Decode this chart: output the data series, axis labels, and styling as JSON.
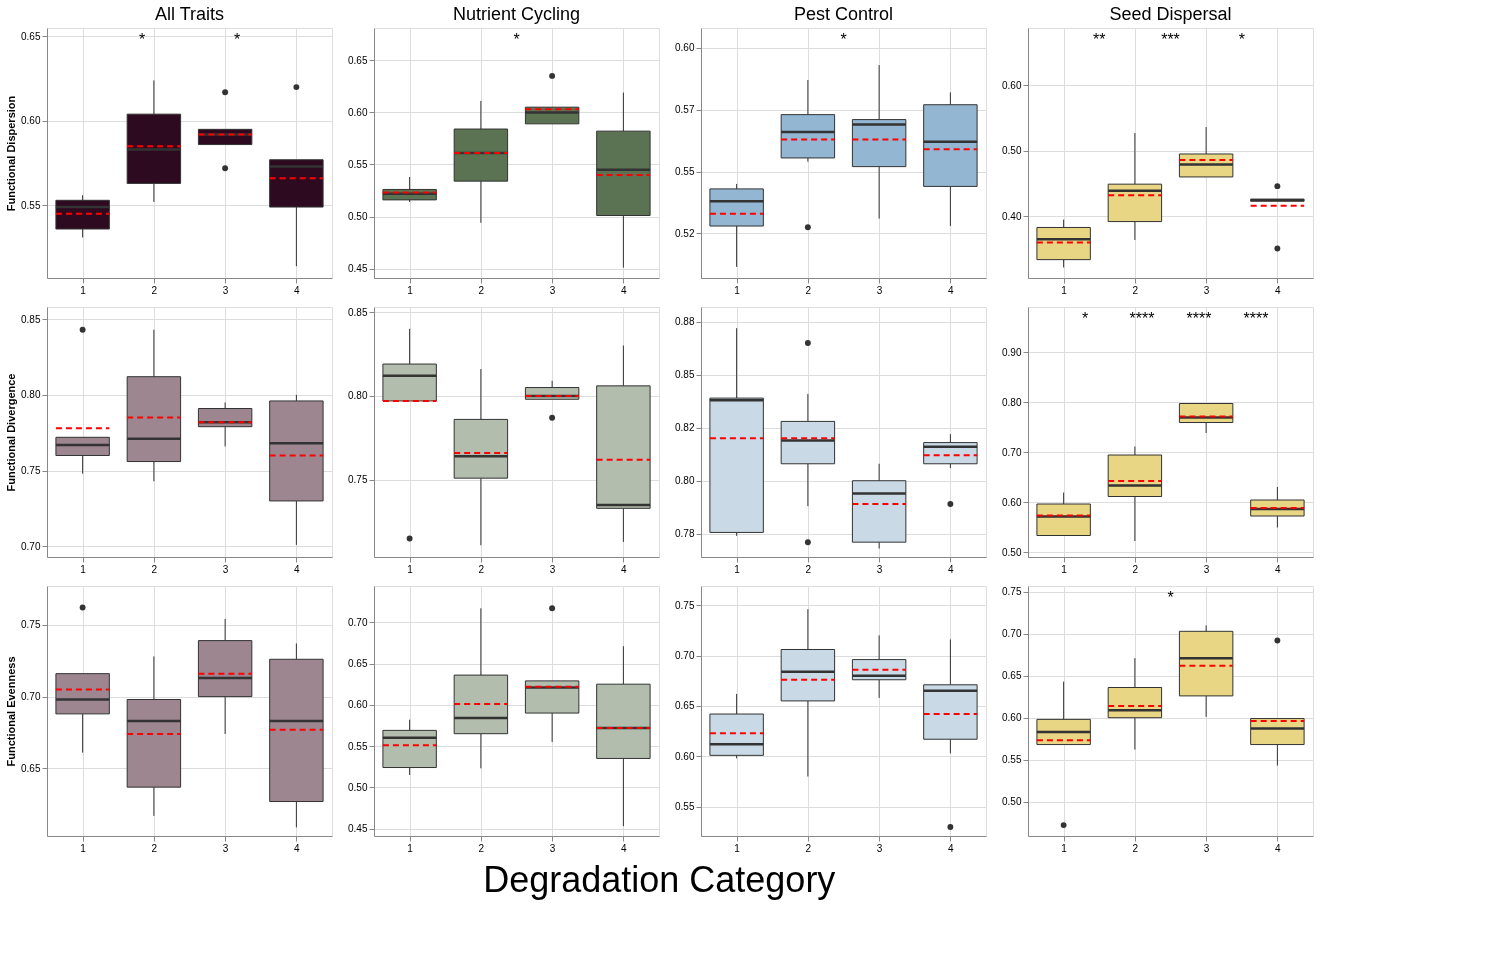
{
  "chart_data": [
    {
      "type": "box",
      "title": "All Traits",
      "ylabel": "Functional Dispersion",
      "categories": [
        "1",
        "2",
        "3",
        "4"
      ],
      "color": "#2d0a1f",
      "grid": true,
      "ylim": [
        0.507,
        0.655
      ],
      "yticks": [
        {
          "value": 0.55,
          "label": "0.55"
        },
        {
          "value": 0.6,
          "label": "0.60"
        },
        {
          "value": 0.65,
          "label": "0.65"
        }
      ],
      "annotations": [
        "*",
        "*"
      ],
      "boxes": [
        {
          "low": 0.531,
          "q1": 0.536,
          "median": 0.549,
          "q3": 0.553,
          "high": 0.556,
          "mean": 0.545
        },
        {
          "low": 0.552,
          "q1": 0.563,
          "median": 0.583,
          "q3": 0.604,
          "high": 0.624,
          "mean": 0.585
        },
        {
          "low": 0.586,
          "q1": 0.586,
          "median": 0.592,
          "q3": 0.595,
          "high": 0.595,
          "mean": 0.592,
          "outliers": [
            0.617,
            0.572
          ]
        },
        {
          "low": 0.514,
          "q1": 0.549,
          "median": 0.573,
          "q3": 0.577,
          "high": 0.577,
          "mean": 0.566,
          "outliers": [
            0.62
          ]
        }
      ]
    },
    {
      "type": "box",
      "title": "Nutrient Cycling",
      "categories": [
        "1",
        "2",
        "3",
        "4"
      ],
      "color": "#5b7352",
      "grid": true,
      "ylim": [
        0.441,
        0.681
      ],
      "yticks": [
        {
          "value": 0.45,
          "label": "0.45"
        },
        {
          "value": 0.5,
          "label": "0.50"
        },
        {
          "value": 0.55,
          "label": "0.55"
        },
        {
          "value": 0.6,
          "label": "0.60"
        },
        {
          "value": 0.65,
          "label": "0.65"
        }
      ],
      "annotations": [
        "*"
      ],
      "boxes": [
        {
          "low": 0.514,
          "q1": 0.516,
          "median": 0.522,
          "q3": 0.526,
          "high": 0.538,
          "mean": 0.523
        },
        {
          "low": 0.494,
          "q1": 0.534,
          "median": 0.561,
          "q3": 0.584,
          "high": 0.611,
          "mean": 0.561
        },
        {
          "low": 0.589,
          "q1": 0.589,
          "median": 0.6,
          "q3": 0.605,
          "high": 0.605,
          "mean": 0.603,
          "outliers": [
            0.635
          ]
        },
        {
          "low": 0.451,
          "q1": 0.501,
          "median": 0.545,
          "q3": 0.582,
          "high": 0.619,
          "mean": 0.54
        }
      ]
    },
    {
      "type": "box",
      "title": "Pest Control",
      "categories": [
        "1",
        "2",
        "3",
        "4"
      ],
      "color": "#93b6d3",
      "grid": true,
      "ylim": [
        0.507,
        0.608
      ],
      "yticks": [
        {
          "value": 0.525,
          "label": "0.52"
        },
        {
          "value": 0.55,
          "label": "0.55"
        },
        {
          "value": 0.575,
          "label": "0.57"
        },
        {
          "value": 0.6,
          "label": "0.60"
        }
      ],
      "annotations": [
        "*"
      ],
      "boxes": [
        {
          "low": 0.5115,
          "q1": 0.528,
          "median": 0.538,
          "q3": 0.543,
          "high": 0.545,
          "mean": 0.533
        },
        {
          "low": 0.554,
          "q1": 0.5555,
          "median": 0.566,
          "q3": 0.573,
          "high": 0.587,
          "mean": 0.563,
          "outliers": [
            0.5275
          ]
        },
        {
          "low": 0.531,
          "q1": 0.552,
          "median": 0.569,
          "q3": 0.571,
          "high": 0.593,
          "mean": 0.563
        },
        {
          "low": 0.528,
          "q1": 0.544,
          "median": 0.562,
          "q3": 0.577,
          "high": 0.582,
          "mean": 0.559
        }
      ]
    },
    {
      "type": "box",
      "title": "Seed Dispersal",
      "categories": [
        "1",
        "2",
        "3",
        "4"
      ],
      "color": "#e9d685",
      "grid": true,
      "ylim": [
        0.306,
        0.687
      ],
      "yticks": [
        {
          "value": 0.4,
          "label": "0.40"
        },
        {
          "value": 0.5,
          "label": "0.50"
        },
        {
          "value": 0.6,
          "label": "0.60"
        }
      ],
      "annotations": [
        "**",
        "***",
        "*"
      ],
      "boxes": [
        {
          "low": 0.322,
          "q1": 0.334,
          "median": 0.365,
          "q3": 0.383,
          "high": 0.395,
          "mean": 0.36
        },
        {
          "low": 0.364,
          "q1": 0.392,
          "median": 0.439,
          "q3": 0.449,
          "high": 0.527,
          "mean": 0.432
        },
        {
          "low": 0.46,
          "q1": 0.46,
          "median": 0.479,
          "q3": 0.495,
          "high": 0.536,
          "mean": 0.486
        },
        {
          "low": 0.423,
          "q1": 0.423,
          "median": 0.425,
          "q3": 0.426,
          "high": 0.426,
          "mean": 0.416,
          "outliers": [
            0.446,
            0.351
          ]
        }
      ]
    },
    {
      "type": "box",
      "ylabel": "Functional Divergence",
      "categories": [
        "1",
        "2",
        "3",
        "4"
      ],
      "color": "#9d8690",
      "grid": true,
      "ylim": [
        0.693,
        0.858
      ],
      "yticks": [
        {
          "value": 0.7,
          "label": "0.70"
        },
        {
          "value": 0.75,
          "label": "0.75"
        },
        {
          "value": 0.8,
          "label": "0.80"
        },
        {
          "value": 0.85,
          "label": "0.85"
        }
      ],
      "boxes": [
        {
          "low": 0.748,
          "q1": 0.76,
          "median": 0.767,
          "q3": 0.772,
          "high": 0.772,
          "mean": 0.778,
          "outliers": [
            0.843
          ]
        },
        {
          "low": 0.743,
          "q1": 0.756,
          "median": 0.771,
          "q3": 0.812,
          "high": 0.843,
          "mean": 0.785
        },
        {
          "low": 0.766,
          "q1": 0.779,
          "median": 0.782,
          "q3": 0.791,
          "high": 0.795,
          "mean": 0.782
        },
        {
          "low": 0.701,
          "q1": 0.73,
          "median": 0.768,
          "q3": 0.796,
          "high": 0.8,
          "mean": 0.76
        }
      ]
    },
    {
      "type": "box",
      "categories": [
        "1",
        "2",
        "3",
        "4"
      ],
      "color": "#b2bdad",
      "grid": true,
      "ylim": [
        0.704,
        0.853
      ],
      "yticks": [
        {
          "value": 0.75,
          "label": "0.75"
        },
        {
          "value": 0.8,
          "label": "0.80"
        },
        {
          "value": 0.85,
          "label": "0.85"
        }
      ],
      "boxes": [
        {
          "low": 0.797,
          "q1": 0.797,
          "median": 0.812,
          "q3": 0.819,
          "high": 0.84,
          "mean": 0.797,
          "outliers": [
            0.715
          ]
        },
        {
          "low": 0.711,
          "q1": 0.751,
          "median": 0.764,
          "q3": 0.786,
          "high": 0.816,
          "mean": 0.766
        },
        {
          "low": 0.798,
          "q1": 0.798,
          "median": 0.8,
          "q3": 0.805,
          "high": 0.809,
          "mean": 0.8,
          "outliers": [
            0.787
          ]
        },
        {
          "low": 0.713,
          "q1": 0.733,
          "median": 0.735,
          "q3": 0.806,
          "high": 0.83,
          "mean": 0.762
        }
      ]
    },
    {
      "type": "box",
      "categories": [
        "1",
        "2",
        "3",
        "4"
      ],
      "color": "#c9dae6",
      "grid": true,
      "ylim": [
        0.764,
        0.882
      ],
      "yticks": [
        {
          "value": 0.775,
          "label": "0.78"
        },
        {
          "value": 0.8,
          "label": "0.80"
        },
        {
          "value": 0.825,
          "label": "0.82"
        },
        {
          "value": 0.85,
          "label": "0.85"
        },
        {
          "value": 0.875,
          "label": "0.88"
        }
      ],
      "boxes": [
        {
          "low": 0.774,
          "q1": 0.7756,
          "median": 0.838,
          "q3": 0.839,
          "high": 0.872,
          "mean": 0.82
        },
        {
          "low": 0.788,
          "q1": 0.808,
          "median": 0.819,
          "q3": 0.828,
          "high": 0.841,
          "mean": 0.82,
          "outliers": [
            0.865,
            0.771
          ]
        },
        {
          "low": 0.768,
          "q1": 0.771,
          "median": 0.794,
          "q3": 0.8,
          "high": 0.808,
          "mean": 0.789
        },
        {
          "low": 0.806,
          "q1": 0.808,
          "median": 0.816,
          "q3": 0.818,
          "high": 0.822,
          "mean": 0.812,
          "outliers": [
            0.789
          ]
        }
      ]
    },
    {
      "type": "box",
      "categories": [
        "1",
        "2",
        "3",
        "4"
      ],
      "color": "#e9d685",
      "grid": true,
      "ylim": [
        0.49,
        0.99
      ],
      "yticks": [
        {
          "value": 0.5,
          "label": "0.50"
        },
        {
          "value": 0.6,
          "label": "0.60"
        },
        {
          "value": 0.7,
          "label": "0.70"
        },
        {
          "value": 0.8,
          "label": "0.80"
        },
        {
          "value": 0.9,
          "label": "0.90"
        }
      ],
      "annotations": [
        "*",
        "****",
        "****",
        "****"
      ],
      "boxes": [
        {
          "low": 0.533,
          "q1": 0.533,
          "median": 0.571,
          "q3": 0.596,
          "high": 0.619,
          "mean": 0.573
        },
        {
          "low": 0.522,
          "q1": 0.611,
          "median": 0.633,
          "q3": 0.694,
          "high": 0.711,
          "mean": 0.642
        },
        {
          "low": 0.738,
          "q1": 0.759,
          "median": 0.769,
          "q3": 0.797,
          "high": 0.797,
          "mean": 0.771
        },
        {
          "low": 0.549,
          "q1": 0.572,
          "median": 0.586,
          "q3": 0.604,
          "high": 0.63,
          "mean": 0.588
        }
      ]
    },
    {
      "type": "box",
      "ylabel": "Functional Evenness",
      "categories": [
        "1",
        "2",
        "3",
        "4"
      ],
      "color": "#9d8690",
      "grid": true,
      "ylim": [
        0.603,
        0.777
      ],
      "yticks": [
        {
          "value": 0.65,
          "label": "0.65"
        },
        {
          "value": 0.7,
          "label": "0.70"
        },
        {
          "value": 0.75,
          "label": "0.75"
        }
      ],
      "boxes": [
        {
          "low": 0.661,
          "q1": 0.688,
          "median": 0.698,
          "q3": 0.716,
          "high": 0.716,
          "mean": 0.705,
          "outliers": [
            0.762
          ]
        },
        {
          "low": 0.617,
          "q1": 0.637,
          "median": 0.683,
          "q3": 0.698,
          "high": 0.728,
          "mean": 0.674
        },
        {
          "low": 0.674,
          "q1": 0.7,
          "median": 0.713,
          "q3": 0.739,
          "high": 0.754,
          "mean": 0.716
        },
        {
          "low": 0.609,
          "q1": 0.627,
          "median": 0.683,
          "q3": 0.726,
          "high": 0.737,
          "mean": 0.677
        }
      ]
    },
    {
      "type": "box",
      "xlabel": "Degradation Category",
      "categories": [
        "1",
        "2",
        "3",
        "4"
      ],
      "color": "#b2bdad",
      "grid": true,
      "ylim": [
        0.441,
        0.744
      ],
      "yticks": [
        {
          "value": 0.45,
          "label": "0.45"
        },
        {
          "value": 0.5,
          "label": "0.50"
        },
        {
          "value": 0.55,
          "label": "0.55"
        },
        {
          "value": 0.6,
          "label": "0.60"
        },
        {
          "value": 0.65,
          "label": "0.65"
        },
        {
          "value": 0.7,
          "label": "0.70"
        }
      ],
      "boxes": [
        {
          "low": 0.515,
          "q1": 0.524,
          "median": 0.56,
          "q3": 0.569,
          "high": 0.582,
          "mean": 0.551
        },
        {
          "low": 0.523,
          "q1": 0.565,
          "median": 0.584,
          "q3": 0.636,
          "high": 0.717,
          "mean": 0.601
        },
        {
          "low": 0.555,
          "q1": 0.59,
          "median": 0.621,
          "q3": 0.629,
          "high": 0.629,
          "mean": 0.622,
          "outliers": [
            0.717
          ]
        },
        {
          "low": 0.453,
          "q1": 0.535,
          "median": 0.572,
          "q3": 0.625,
          "high": 0.671,
          "mean": 0.572
        }
      ]
    },
    {
      "type": "box",
      "categories": [
        "1",
        "2",
        "3",
        "4"
      ],
      "color": "#c9dae6",
      "grid": true,
      "ylim": [
        0.521,
        0.769
      ],
      "yticks": [
        {
          "value": 0.55,
          "label": "0.55"
        },
        {
          "value": 0.6,
          "label": "0.60"
        },
        {
          "value": 0.65,
          "label": "0.65"
        },
        {
          "value": 0.7,
          "label": "0.70"
        },
        {
          "value": 0.75,
          "label": "0.75"
        }
      ],
      "boxes": [
        {
          "low": 0.598,
          "q1": 0.601,
          "median": 0.612,
          "q3": 0.642,
          "high": 0.662,
          "mean": 0.623
        },
        {
          "low": 0.58,
          "q1": 0.655,
          "median": 0.684,
          "q3": 0.706,
          "high": 0.746,
          "mean": 0.676
        },
        {
          "low": 0.658,
          "q1": 0.676,
          "median": 0.68,
          "q3": 0.696,
          "high": 0.72,
          "mean": 0.686
        },
        {
          "low": 0.603,
          "q1": 0.617,
          "median": 0.665,
          "q3": 0.671,
          "high": 0.716,
          "mean": 0.642,
          "outliers": [
            0.53
          ]
        }
      ]
    },
    {
      "type": "box",
      "categories": [
        "1",
        "2",
        "3",
        "4"
      ],
      "color": "#e9d685",
      "grid": true,
      "ylim": [
        0.459,
        0.757
      ],
      "yticks": [
        {
          "value": 0.5,
          "label": "0.50"
        },
        {
          "value": 0.55,
          "label": "0.55"
        },
        {
          "value": 0.6,
          "label": "0.60"
        },
        {
          "value": 0.65,
          "label": "0.65"
        },
        {
          "value": 0.7,
          "label": "0.70"
        },
        {
          "value": 0.75,
          "label": "0.75"
        }
      ],
      "annotations": [
        "*"
      ],
      "boxes": [
        {
          "low": 0.568,
          "q1": 0.568,
          "median": 0.583,
          "q3": 0.598,
          "high": 0.643,
          "mean": 0.573,
          "outliers": [
            0.472
          ]
        },
        {
          "low": 0.562,
          "q1": 0.6,
          "median": 0.609,
          "q3": 0.636,
          "high": 0.671,
          "mean": 0.614
        },
        {
          "low": 0.601,
          "q1": 0.626,
          "median": 0.671,
          "q3": 0.703,
          "high": 0.71,
          "mean": 0.662
        },
        {
          "low": 0.543,
          "q1": 0.568,
          "median": 0.587,
          "q3": 0.599,
          "high": 0.599,
          "mean": 0.596,
          "outliers": [
            0.692
          ]
        }
      ]
    }
  ]
}
